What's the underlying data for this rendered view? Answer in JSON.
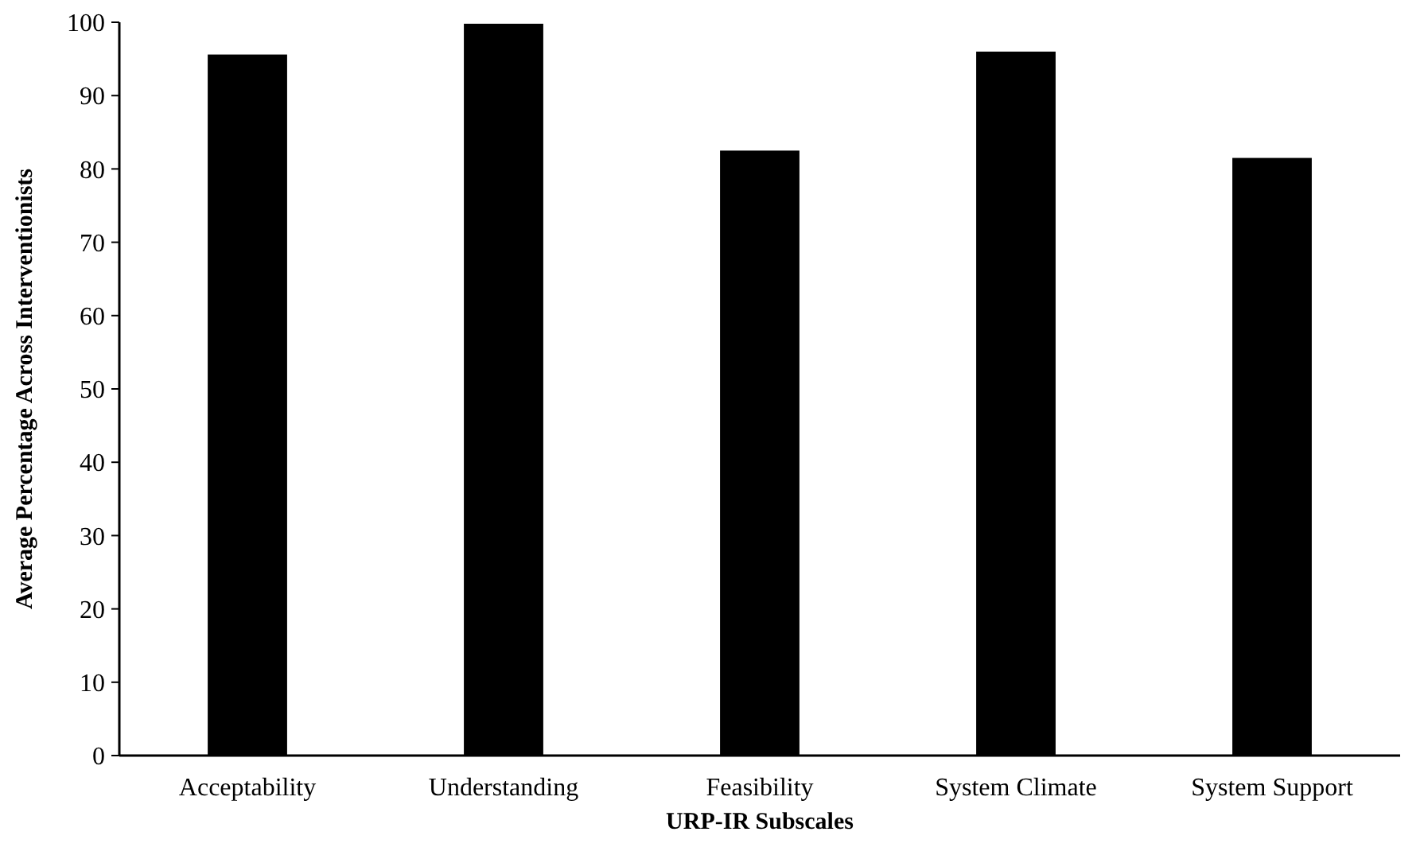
{
  "chart_data": {
    "type": "bar",
    "xlabel": "URP-IR Subscales",
    "ylabel": "Average Percentage Across Interventionists",
    "categories": [
      "Acceptability",
      "Understanding",
      "Feasibility",
      "System Climate",
      "System Support"
    ],
    "values": [
      95.6,
      99.8,
      82.5,
      96,
      81.5
    ],
    "color": "#000000",
    "ylim": [
      0,
      100
    ],
    "yticks": [
      0,
      10,
      20,
      30,
      40,
      50,
      60,
      70,
      80,
      90,
      100
    ],
    "grid": false
  }
}
